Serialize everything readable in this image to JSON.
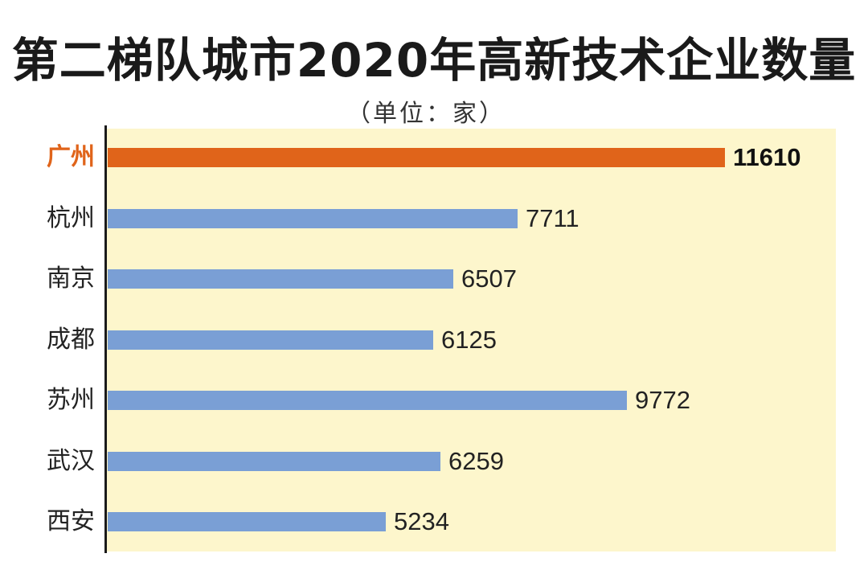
{
  "chart_data": {
    "type": "bar",
    "orientation": "horizontal",
    "title": "第二梯队城市2020年高新技术企业数量",
    "subtitle": "（单位：家）",
    "categories": [
      "广州",
      "杭州",
      "南京",
      "成都",
      "苏州",
      "武汉",
      "西安"
    ],
    "values": [
      11610,
      7711,
      6507,
      6125,
      9772,
      6259,
      5234
    ],
    "highlight_category": "广州",
    "xlim": [
      0,
      11610
    ],
    "grid": false,
    "colors": {
      "default_bar": "#7a9fd5",
      "highlight_bar": "#e0641a",
      "background": "#fdf6cc"
    }
  }
}
